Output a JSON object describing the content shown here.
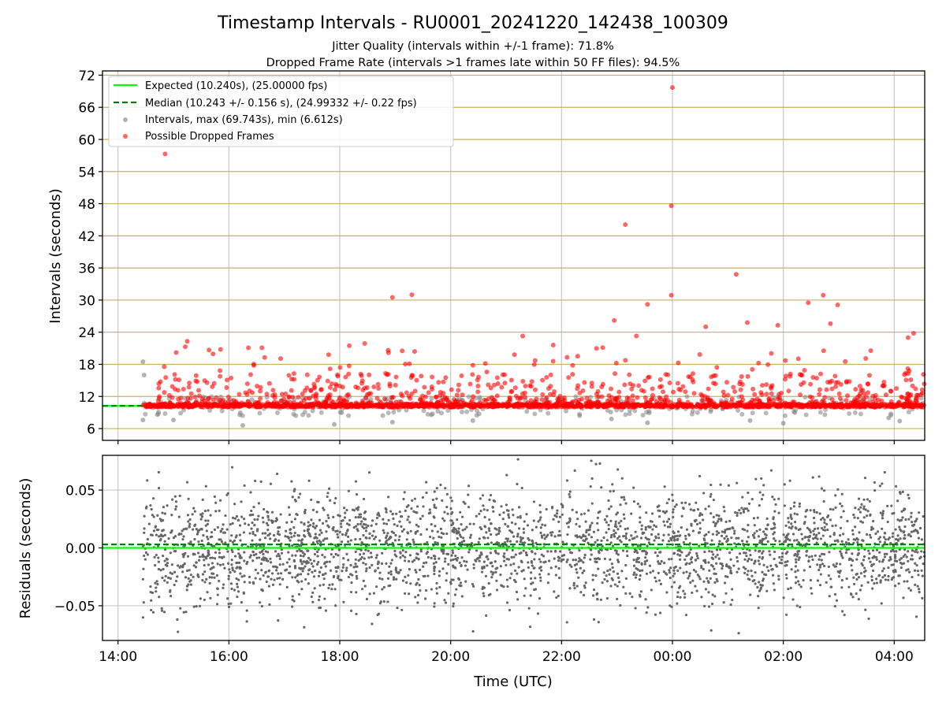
{
  "title": "Timestamp Intervals - RU0001_20241220_142438_100309",
  "subtitle_1": "Jitter Quality (intervals within +/-1 frame): 71.8%",
  "subtitle_2": "Dropped Frame Rate (intervals >1 frames late within 50 FF files): 94.5%",
  "colors": {
    "expected": "#00ff00",
    "median": "#008000",
    "intervals": "#808080",
    "dropped": "#ff0000",
    "hgrid_top": "#c8b060",
    "grid": "#c8c8c8",
    "residuals": "#666666"
  },
  "chart_data": [
    {
      "type": "scatter",
      "ylabel": "Intervals (seconds)",
      "xlim": [
        13.72,
        28.55
      ],
      "ylim": [
        3.8,
        72.8
      ],
      "x_ticks": [
        14,
        16,
        18,
        20,
        22,
        24,
        26,
        28
      ],
      "y_ticks": [
        6,
        12,
        18,
        24,
        30,
        36,
        42,
        48,
        54,
        60,
        66,
        72
      ],
      "y_tick_labels": [
        "6",
        "12",
        "18",
        "24",
        "30",
        "36",
        "42",
        "48",
        "54",
        "60",
        "66",
        "72"
      ],
      "grid": true,
      "legend_placement": "top-left",
      "legend": [
        {
          "label": "Expected (10.240s), (25.00000 fps)",
          "style": "line"
        },
        {
          "label": "Median (10.243 +/- 0.156 s), (24.99332 +/- 0.22 fps)",
          "style": "dashed"
        },
        {
          "label": "Intervals, max (69.743s), min (6.612s)",
          "style": "marker-gray"
        },
        {
          "label": "Possible Dropped Frames",
          "style": "marker-red"
        }
      ],
      "expected_value": 10.24,
      "median_value": 10.243,
      "data_time_range": [
        14.45,
        28.55
      ],
      "dropped_band": [
        10.0,
        10.6
      ],
      "outliers_dropped": [
        {
          "x": 14.85,
          "y": 57.3
        },
        {
          "x": 23.15,
          "y": 44.1
        },
        {
          "x": 24.0,
          "y": 69.7
        },
        {
          "x": 23.98,
          "y": 47.6
        },
        {
          "x": 23.98,
          "y": 30.9
        },
        {
          "x": 25.15,
          "y": 34.8
        },
        {
          "x": 18.95,
          "y": 30.5
        },
        {
          "x": 19.3,
          "y": 31.0
        },
        {
          "x": 26.72,
          "y": 30.9
        },
        {
          "x": 26.45,
          "y": 29.5
        },
        {
          "x": 26.98,
          "y": 29.1
        },
        {
          "x": 23.55,
          "y": 29.2
        },
        {
          "x": 22.95,
          "y": 26.2
        },
        {
          "x": 25.35,
          "y": 25.8
        },
        {
          "x": 25.9,
          "y": 25.3
        },
        {
          "x": 24.6,
          "y": 25.0
        },
        {
          "x": 26.85,
          "y": 25.6
        },
        {
          "x": 23.35,
          "y": 23.3
        },
        {
          "x": 21.3,
          "y": 23.3
        },
        {
          "x": 28.35,
          "y": 23.8
        },
        {
          "x": 28.25,
          "y": 23.0
        },
        {
          "x": 15.25,
          "y": 22.3
        },
        {
          "x": 18.45,
          "y": 21.9
        },
        {
          "x": 21.85,
          "y": 21.6
        },
        {
          "x": 15.85,
          "y": 20.8
        },
        {
          "x": 19.35,
          "y": 20.4
        },
        {
          "x": 17.8,
          "y": 19.8
        },
        {
          "x": 21.15,
          "y": 19.8
        },
        {
          "x": 22.1,
          "y": 19.3
        },
        {
          "x": 15.05,
          "y": 20.2
        },
        {
          "x": 16.45,
          "y": 17.8
        },
        {
          "x": 22.2,
          "y": 17.8
        }
      ],
      "outliers_intervals": [
        {
          "x": 14.45,
          "y": 18.5
        },
        {
          "x": 14.47,
          "y": 16.0
        },
        {
          "x": 14.45,
          "y": 7.6
        },
        {
          "x": 16.25,
          "y": 6.6
        },
        {
          "x": 17.9,
          "y": 6.8
        },
        {
          "x": 23.55,
          "y": 7.1
        },
        {
          "x": 26.0,
          "y": 7.0
        },
        {
          "x": 28.1,
          "y": 7.4
        },
        {
          "x": 15.0,
          "y": 7.6
        },
        {
          "x": 18.95,
          "y": 7.2
        },
        {
          "x": 20.4,
          "y": 7.5
        },
        {
          "x": 22.9,
          "y": 7.8
        },
        {
          "x": 25.4,
          "y": 7.5
        },
        {
          "x": 27.9,
          "y": 8.0
        }
      ]
    },
    {
      "type": "scatter",
      "ylabel": "Residuals (seconds)",
      "xlabel": "Time (UTC)",
      "xlim": [
        13.72,
        28.55
      ],
      "ylim": [
        -0.08,
        0.08
      ],
      "x_ticks": [
        14,
        16,
        18,
        20,
        22,
        24,
        26,
        28
      ],
      "x_tick_labels": [
        "14:00",
        "16:00",
        "18:00",
        "20:00",
        "22:00",
        "00:00",
        "02:00",
        "04:00"
      ],
      "y_ticks": [
        -0.05,
        0.0,
        0.05
      ],
      "y_tick_labels": [
        "−0.05",
        "0.00",
        "0.05"
      ],
      "grid": true,
      "expected_residual": 0.0,
      "median_residual": 0.003,
      "data_time_range": [
        14.45,
        28.55
      ]
    }
  ]
}
